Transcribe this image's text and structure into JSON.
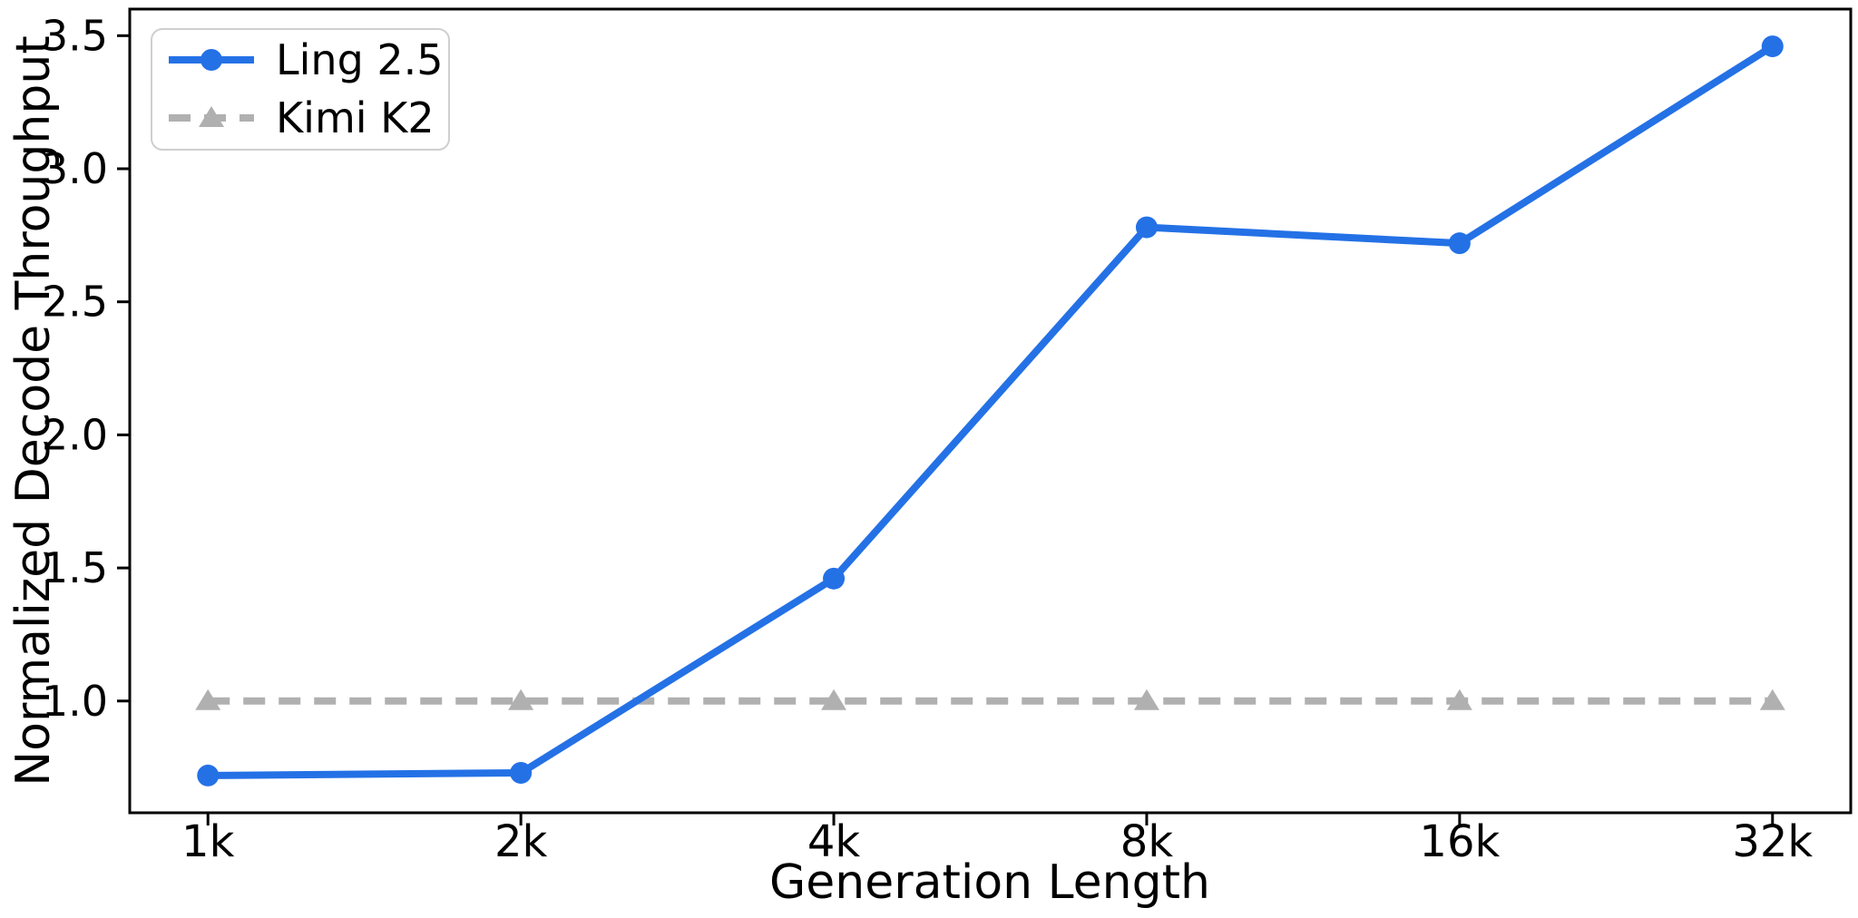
{
  "figure": {
    "background": "#ffffff",
    "frame_color": "#000000"
  },
  "chart_data": {
    "type": "line",
    "title": "",
    "xlabel": "Generation Length",
    "ylabel": "Normalized Decode Throughput",
    "categories": [
      "1k",
      "2k",
      "4k",
      "8k",
      "16k",
      "32k"
    ],
    "series": [
      {
        "name": "Ling 2.5",
        "values": [
          0.72,
          0.73,
          1.46,
          2.78,
          2.72,
          3.46
        ],
        "color": "#2471e6",
        "marker": "circle",
        "line_style": "solid"
      },
      {
        "name": "Kimi K2",
        "values": [
          1.0,
          1.0,
          1.0,
          1.0,
          1.0,
          1.0
        ],
        "color": "#b0b0b0",
        "marker": "triangle",
        "line_style": "dashed"
      }
    ],
    "y_ticks": [
      "1.0",
      "1.5",
      "2.0",
      "2.5",
      "3.0",
      "3.5"
    ],
    "ylim": [
      0.58,
      3.6
    ],
    "grid": false,
    "legend_position": "upper-left",
    "legend_border_color": "#cfcfcf"
  }
}
